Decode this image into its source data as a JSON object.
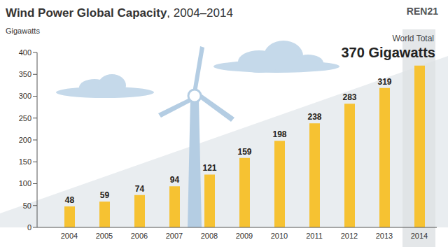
{
  "chart_data": {
    "type": "bar",
    "title": "Wind Power Global Capacity, 2004–2014",
    "y_label": "Gigawatts",
    "annotations": [
      "World Total",
      "370 Gigawatts"
    ],
    "logo": "REN21",
    "categories": [
      "2004",
      "2005",
      "2006",
      "2007",
      "2008",
      "2009",
      "2010",
      "2011",
      "2012",
      "2013",
      "2014"
    ],
    "values": [
      48,
      59,
      74,
      94,
      121,
      159,
      198,
      238,
      283,
      319,
      370
    ],
    "value_labels": [
      "48",
      "59",
      "74",
      "94",
      "121",
      "159",
      "198",
      "238",
      "283",
      "319",
      null
    ],
    "color": "#f6c232",
    "ylim": [
      0,
      400
    ],
    "yticks": [
      0,
      50,
      100,
      150,
      200,
      250,
      300,
      350,
      400
    ],
    "grid": false,
    "data_labels": true
  }
}
